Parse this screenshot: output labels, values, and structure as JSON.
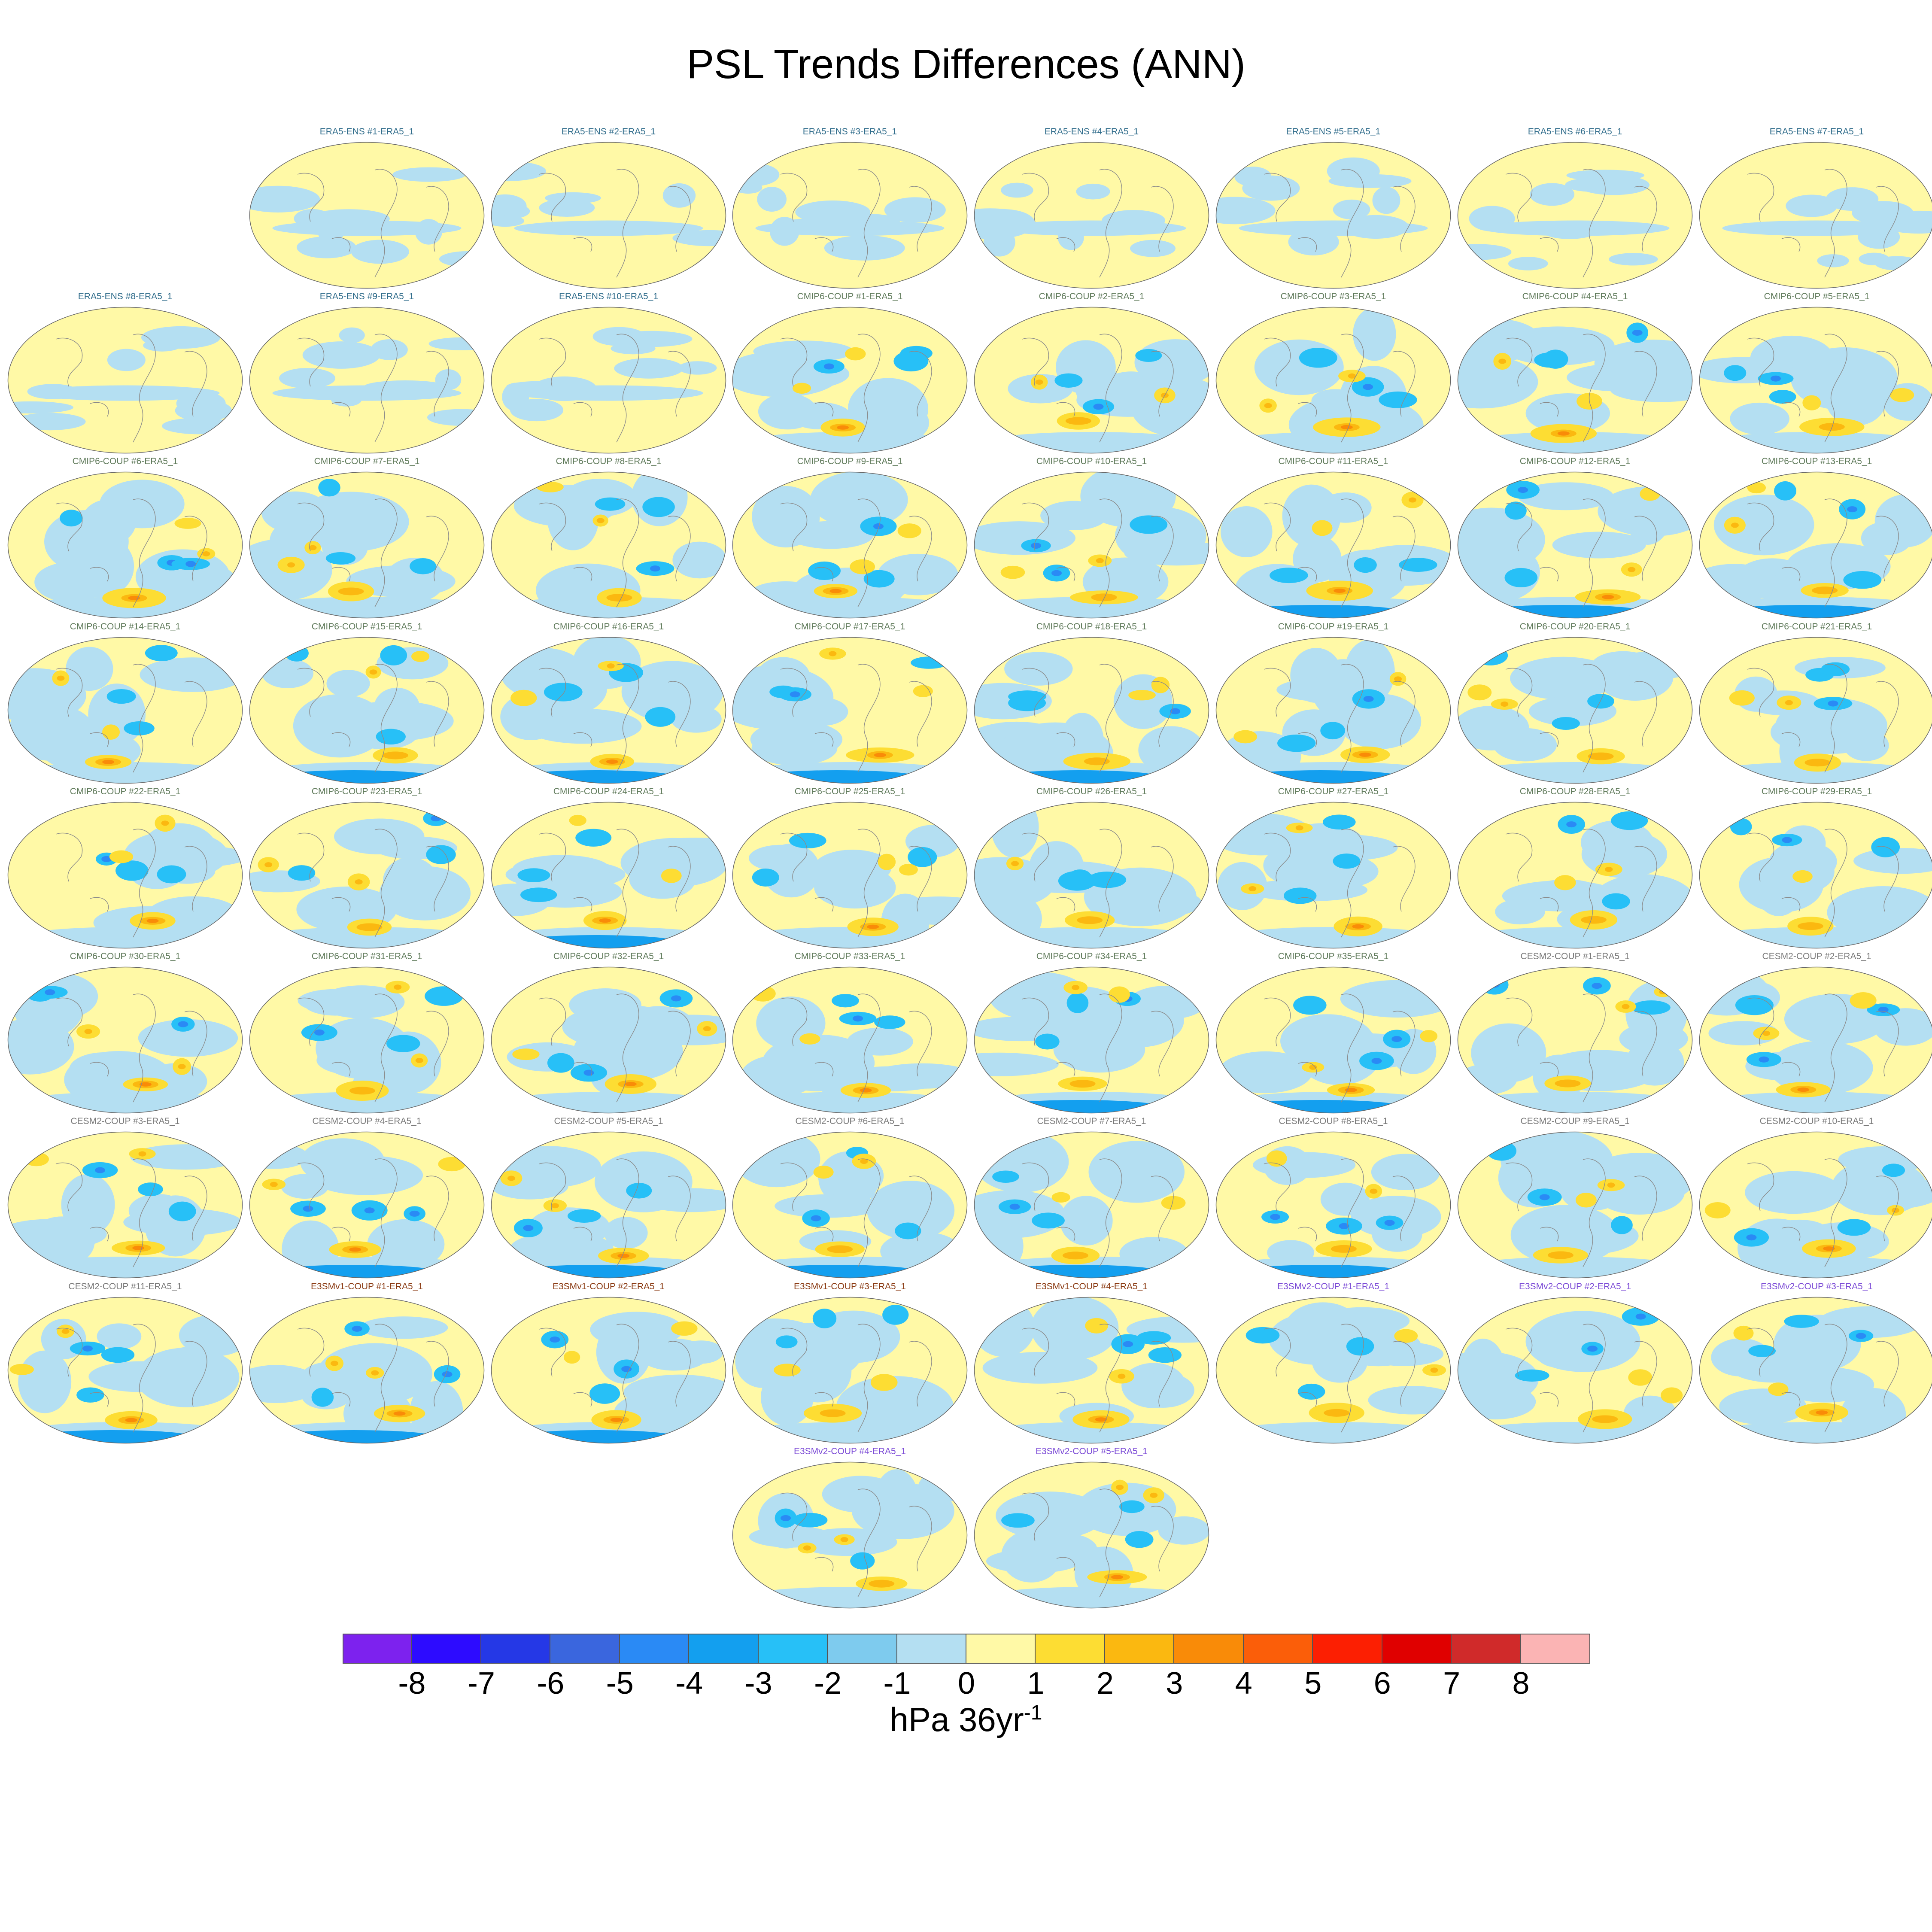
{
  "title": "PSL Trends Differences (ANN)",
  "colorbar": {
    "ticks": [
      "-8",
      "-7",
      "-6",
      "-5",
      "-4",
      "-3",
      "-2",
      "-1",
      "0",
      "1",
      "2",
      "3",
      "4",
      "5",
      "6",
      "7",
      "8"
    ],
    "colors": [
      "#7d22ee",
      "#2d0bff",
      "#2538e6",
      "#3a66de",
      "#2a8af5",
      "#139fef",
      "#27c0f7",
      "#7ecbee",
      "#b4dff2",
      "#fff9a6",
      "#fddd33",
      "#fbb810",
      "#f98b08",
      "#fb5e09",
      "#fc1f02",
      "#e00000",
      "#d02a2a",
      "#fbb4b4"
    ],
    "units_base": "hPa 36yr",
    "units_exp": "-1"
  },
  "panels": [
    {
      "label": "ERA5-ENS    #1-ERA5_1",
      "group": "ERA5",
      "color": "#2e6b8a"
    },
    {
      "label": "ERA5-ENS    #2-ERA5_1",
      "group": "ERA5",
      "color": "#2e6b8a"
    },
    {
      "label": "ERA5-ENS    #3-ERA5_1",
      "group": "ERA5",
      "color": "#2e6b8a"
    },
    {
      "label": "ERA5-ENS    #4-ERA5_1",
      "group": "ERA5",
      "color": "#2e6b8a"
    },
    {
      "label": "ERA5-ENS    #5-ERA5_1",
      "group": "ERA5",
      "color": "#2e6b8a"
    },
    {
      "label": "ERA5-ENS    #6-ERA5_1",
      "group": "ERA5",
      "color": "#2e6b8a"
    },
    {
      "label": "ERA5-ENS    #7-ERA5_1",
      "group": "ERA5",
      "color": "#2e6b8a"
    },
    {
      "label": "ERA5-ENS    #8-ERA5_1",
      "group": "ERA5",
      "color": "#2e6b8a"
    },
    {
      "label": "ERA5-ENS    #9-ERA5_1",
      "group": "ERA5",
      "color": "#2e6b8a"
    },
    {
      "label": "ERA5-ENS    #10-ERA5_1",
      "group": "ERA5",
      "color": "#2e6b8a"
    },
    {
      "label": "CMIP6-COUP  #1-ERA5_1",
      "group": "CMIP6",
      "color": "#5f7a5a"
    },
    {
      "label": "CMIP6-COUP  #2-ERA5_1",
      "group": "CMIP6",
      "color": "#5f7a5a"
    },
    {
      "label": "CMIP6-COUP  #3-ERA5_1",
      "group": "CMIP6",
      "color": "#5f7a5a"
    },
    {
      "label": "CMIP6-COUP  #4-ERA5_1",
      "group": "CMIP6",
      "color": "#5f7a5a"
    },
    {
      "label": "CMIP6-COUP  #5-ERA5_1",
      "group": "CMIP6",
      "color": "#5f7a5a"
    },
    {
      "label": "CMIP6-COUP  #6-ERA5_1",
      "group": "CMIP6",
      "color": "#5f7a5a"
    },
    {
      "label": "CMIP6-COUP  #7-ERA5_1",
      "group": "CMIP6",
      "color": "#5f7a5a"
    },
    {
      "label": "CMIP6-COUP  #8-ERA5_1",
      "group": "CMIP6",
      "color": "#5f7a5a"
    },
    {
      "label": "CMIP6-COUP  #9-ERA5_1",
      "group": "CMIP6",
      "color": "#5f7a5a"
    },
    {
      "label": "CMIP6-COUP  #10-ERA5_1",
      "group": "CMIP6",
      "color": "#5f7a5a"
    },
    {
      "label": "CMIP6-COUP  #11-ERA5_1",
      "group": "CMIP6",
      "color": "#5f7a5a"
    },
    {
      "label": "CMIP6-COUP  #12-ERA5_1",
      "group": "CMIP6",
      "color": "#5f7a5a"
    },
    {
      "label": "CMIP6-COUP  #13-ERA5_1",
      "group": "CMIP6",
      "color": "#5f7a5a"
    },
    {
      "label": "CMIP6-COUP  #14-ERA5_1",
      "group": "CMIP6",
      "color": "#5f7a5a"
    },
    {
      "label": "CMIP6-COUP  #15-ERA5_1",
      "group": "CMIP6",
      "color": "#5f7a5a"
    },
    {
      "label": "CMIP6-COUP  #16-ERA5_1",
      "group": "CMIP6",
      "color": "#5f7a5a"
    },
    {
      "label": "CMIP6-COUP  #17-ERA5_1",
      "group": "CMIP6",
      "color": "#5f7a5a"
    },
    {
      "label": "CMIP6-COUP  #18-ERA5_1",
      "group": "CMIP6",
      "color": "#5f7a5a"
    },
    {
      "label": "CMIP6-COUP  #19-ERA5_1",
      "group": "CMIP6",
      "color": "#5f7a5a"
    },
    {
      "label": "CMIP6-COUP  #20-ERA5_1",
      "group": "CMIP6",
      "color": "#5f7a5a"
    },
    {
      "label": "CMIP6-COUP  #21-ERA5_1",
      "group": "CMIP6",
      "color": "#5f7a5a"
    },
    {
      "label": "CMIP6-COUP  #22-ERA5_1",
      "group": "CMIP6",
      "color": "#5f7a5a"
    },
    {
      "label": "CMIP6-COUP  #23-ERA5_1",
      "group": "CMIP6",
      "color": "#5f7a5a"
    },
    {
      "label": "CMIP6-COUP  #24-ERA5_1",
      "group": "CMIP6",
      "color": "#5f7a5a"
    },
    {
      "label": "CMIP6-COUP  #25-ERA5_1",
      "group": "CMIP6",
      "color": "#5f7a5a"
    },
    {
      "label": "CMIP6-COUP  #26-ERA5_1",
      "group": "CMIP6",
      "color": "#5f7a5a"
    },
    {
      "label": "CMIP6-COUP  #27-ERA5_1",
      "group": "CMIP6",
      "color": "#5f7a5a"
    },
    {
      "label": "CMIP6-COUP  #28-ERA5_1",
      "group": "CMIP6",
      "color": "#5f7a5a"
    },
    {
      "label": "CMIP6-COUP  #29-ERA5_1",
      "group": "CMIP6",
      "color": "#5f7a5a"
    },
    {
      "label": "CMIP6-COUP  #30-ERA5_1",
      "group": "CMIP6",
      "color": "#5f7a5a"
    },
    {
      "label": "CMIP6-COUP  #31-ERA5_1",
      "group": "CMIP6",
      "color": "#5f7a5a"
    },
    {
      "label": "CMIP6-COUP  #32-ERA5_1",
      "group": "CMIP6",
      "color": "#5f7a5a"
    },
    {
      "label": "CMIP6-COUP  #33-ERA5_1",
      "group": "CMIP6",
      "color": "#5f7a5a"
    },
    {
      "label": "CMIP6-COUP  #34-ERA5_1",
      "group": "CMIP6",
      "color": "#5f7a5a"
    },
    {
      "label": "CMIP6-COUP  #35-ERA5_1",
      "group": "CMIP6",
      "color": "#5f7a5a"
    },
    {
      "label": "CESM2-COUP  #1-ERA5_1",
      "group": "CESM2",
      "color": "#7a7a7a"
    },
    {
      "label": "CESM2-COUP  #2-ERA5_1",
      "group": "CESM2",
      "color": "#7a7a7a"
    },
    {
      "label": "CESM2-COUP  #3-ERA5_1",
      "group": "CESM2",
      "color": "#7a7a7a"
    },
    {
      "label": "CESM2-COUP  #4-ERA5_1",
      "group": "CESM2",
      "color": "#7a7a7a"
    },
    {
      "label": "CESM2-COUP  #5-ERA5_1",
      "group": "CESM2",
      "color": "#7a7a7a"
    },
    {
      "label": "CESM2-COUP  #6-ERA5_1",
      "group": "CESM2",
      "color": "#7a7a7a"
    },
    {
      "label": "CESM2-COUP  #7-ERA5_1",
      "group": "CESM2",
      "color": "#7a7a7a"
    },
    {
      "label": "CESM2-COUP  #8-ERA5_1",
      "group": "CESM2",
      "color": "#7a7a7a"
    },
    {
      "label": "CESM2-COUP  #9-ERA5_1",
      "group": "CESM2",
      "color": "#7a7a7a"
    },
    {
      "label": "CESM2-COUP  #10-ERA5_1",
      "group": "CESM2",
      "color": "#7a7a7a"
    },
    {
      "label": "CESM2-COUP  #11-ERA5_1",
      "group": "CESM2",
      "color": "#7a7a7a"
    },
    {
      "label": "E3SMv1-COUP #1-ERA5_1",
      "group": "E3SMv1",
      "color": "#8a3a12"
    },
    {
      "label": "E3SMv1-COUP #2-ERA5_1",
      "group": "E3SMv1",
      "color": "#8a3a12"
    },
    {
      "label": "E3SMv1-COUP #3-ERA5_1",
      "group": "E3SMv1",
      "color": "#8a3a12"
    },
    {
      "label": "E3SMv1-COUP #4-ERA5_1",
      "group": "E3SMv1",
      "color": "#8a3a12"
    },
    {
      "label": "E3SMv2-COUP #1-ERA5_1",
      "group": "E3SMv2",
      "color": "#7b4ad6"
    },
    {
      "label": "E3SMv2-COUP #2-ERA5_1",
      "group": "E3SMv2",
      "color": "#7b4ad6"
    },
    {
      "label": "E3SMv2-COUP #3-ERA5_1",
      "group": "E3SMv2",
      "color": "#7b4ad6"
    },
    {
      "label": "E3SMv2-COUP #4-ERA5_1",
      "group": "E3SMv2",
      "color": "#7b4ad6"
    },
    {
      "label": "E3SMv2-COUP #5-ERA5_1",
      "group": "E3SMv2",
      "color": "#7b4ad6"
    }
  ]
}
